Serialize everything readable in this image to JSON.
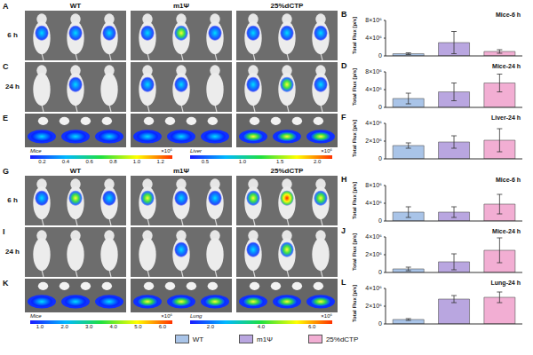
{
  "chart_data": [
    {
      "panel": "B",
      "type": "bar",
      "title": "Mice-6 h",
      "ylabel": "Total Flux [p/s]",
      "categories": [
        "WT",
        "m1Ψ",
        "25%dCTP"
      ],
      "values": [
        500000,
        3000000,
        1000000
      ],
      "errors": [
        200000,
        2500000,
        400000
      ],
      "colors": [
        "#a9c4e8",
        "#b9a6e0",
        "#f2aed3"
      ],
      "ylim": [
        0,
        8000000
      ],
      "yticks": [
        0,
        {
          "value": 4000000,
          "label": "4×10⁶"
        },
        {
          "value": 8000000,
          "label": "8×10⁶"
        }
      ],
      "grid": false,
      "tick_labels": "y",
      "legend": "bottom"
    },
    {
      "panel": "D",
      "type": "bar",
      "title": "Mice-24 h",
      "ylabel": "Total Flux [p/s]",
      "categories": [
        "WT",
        "m1Ψ",
        "25%dCTP"
      ],
      "values": [
        2000000,
        3500000,
        5500000
      ],
      "errors": [
        1200000,
        2000000,
        2000000
      ],
      "colors": [
        "#a9c4e8",
        "#b9a6e0",
        "#f2aed3"
      ],
      "ylim": [
        0,
        8000000
      ],
      "yticks": [
        0,
        {
          "value": 4000000,
          "label": "4×10⁶"
        },
        {
          "value": 8000000,
          "label": "8×10⁶"
        }
      ],
      "grid": false,
      "tick_labels": "y",
      "legend": "bottom"
    },
    {
      "panel": "F",
      "type": "bar",
      "title": "Liver-24 h",
      "ylabel": "Total Flux [p/s]",
      "categories": [
        "WT",
        "m1Ψ",
        "25%dCTP"
      ],
      "values": [
        1500000,
        1900000,
        2100000
      ],
      "errors": [
        300000,
        700000,
        1300000
      ],
      "colors": [
        "#a9c4e8",
        "#b9a6e0",
        "#f2aed3"
      ],
      "ylim": [
        0,
        4000000
      ],
      "yticks": [
        0,
        {
          "value": 2000000,
          "label": "2×10⁶"
        },
        {
          "value": 4000000,
          "label": "4×10⁶"
        }
      ],
      "grid": false,
      "tick_labels": "y",
      "legend": "bottom"
    },
    {
      "panel": "H",
      "type": "bar",
      "title": "Mice-6 h",
      "ylabel": "Total Flux [p/s]",
      "categories": [
        "WT",
        "m1Ψ",
        "25%dCTP"
      ],
      "values": [
        2000000,
        2000000,
        3800000
      ],
      "errors": [
        1200000,
        1200000,
        2200000
      ],
      "colors": [
        "#a9c4e8",
        "#b9a6e0",
        "#f2aed3"
      ],
      "ylim": [
        0,
        8000000
      ],
      "yticks": [
        0,
        {
          "value": 4000000,
          "label": "4×10⁶"
        },
        {
          "value": 8000000,
          "label": "8×10⁶"
        }
      ],
      "grid": false,
      "tick_labels": "y",
      "legend": "bottom"
    },
    {
      "panel": "J",
      "type": "bar",
      "title": "Mice-24 h",
      "ylabel": "Total Flux [p/s]",
      "categories": [
        "WT",
        "m1Ψ",
        "25%dCTP"
      ],
      "values": [
        400000,
        1200000,
        2500000
      ],
      "errors": [
        200000,
        900000,
        1400000
      ],
      "colors": [
        "#a9c4e8",
        "#b9a6e0",
        "#f2aed3"
      ],
      "ylim": [
        0,
        4000000
      ],
      "yticks": [
        0,
        {
          "value": 2000000,
          "label": "2×10⁶"
        },
        {
          "value": 4000000,
          "label": "4×10⁶"
        }
      ],
      "grid": false,
      "tick_labels": "y",
      "legend": "bottom"
    },
    {
      "panel": "L",
      "type": "bar",
      "title": "Lung-24 h",
      "ylabel": "Total Flux [p/s]",
      "categories": [
        "WT",
        "m1Ψ",
        "25%dCTP"
      ],
      "values": [
        500000,
        2800000,
        3000000
      ],
      "errors": [
        100000,
        400000,
        600000
      ],
      "colors": [
        "#a9c4e8",
        "#b9a6e0",
        "#f2aed3"
      ],
      "ylim": [
        0,
        4000000
      ],
      "yticks": [
        0,
        {
          "value": 2000000,
          "label": "2×10⁶"
        },
        {
          "value": 4000000,
          "label": "4×10⁶"
        }
      ],
      "grid": false,
      "tick_labels": "y",
      "legend": "bottom"
    }
  ],
  "figure": {
    "image_panels": [
      {
        "letter": "A",
        "group_labels": [
          "WT",
          "m1Ψ",
          "25%dCTP"
        ],
        "row_label": "6 h"
      },
      {
        "letter": "C",
        "row_label": "24 h"
      },
      {
        "letter": "E",
        "colorbars": [
          {
            "name": "Mice",
            "scale_label": "×10⁶",
            "range": [
              0.1,
              1.3
            ],
            "ticks": [
              0.2,
              0.4,
              0.6,
              0.8,
              {
                "value": 1,
                "label": "1.0"
              },
              1.2
            ]
          },
          {
            "name": "Liver",
            "scale_label": "×10⁶",
            "range": [
              0.3,
              2.2
            ],
            "ticks": [
              0.5,
              {
                "value": 1,
                "label": "1.0"
              },
              1.5,
              {
                "value": 2,
                "label": "2.0"
              }
            ]
          }
        ]
      },
      {
        "letter": "G",
        "group_labels": [
          "WT",
          "m1Ψ",
          "25%dCTP"
        ],
        "row_label": "6 h"
      },
      {
        "letter": "I",
        "row_label": "24 h"
      },
      {
        "letter": "K",
        "colorbars": [
          {
            "name": "Mice",
            "scale_label": "×10⁶",
            "range": [
              0.6,
              6.4
            ],
            "ticks": [
              {
                "value": 1,
                "label": "1.0"
              },
              {
                "value": 2,
                "label": "2.0"
              },
              {
                "value": 3,
                "label": "3.0"
              },
              {
                "value": 4,
                "label": "4.0"
              },
              {
                "value": 5,
                "label": "5.0"
              },
              {
                "value": 6,
                "label": "6.0"
              }
            ]
          },
          {
            "name": "Lung",
            "scale_label": "×10⁶",
            "range": [
              1.2,
              6.8
            ],
            "ticks": [
              {
                "value": 2,
                "label": "2.0"
              },
              {
                "value": 4,
                "label": "4.0"
              },
              {
                "value": 6,
                "label": "6.0"
              }
            ]
          }
        ]
      }
    ]
  }
}
